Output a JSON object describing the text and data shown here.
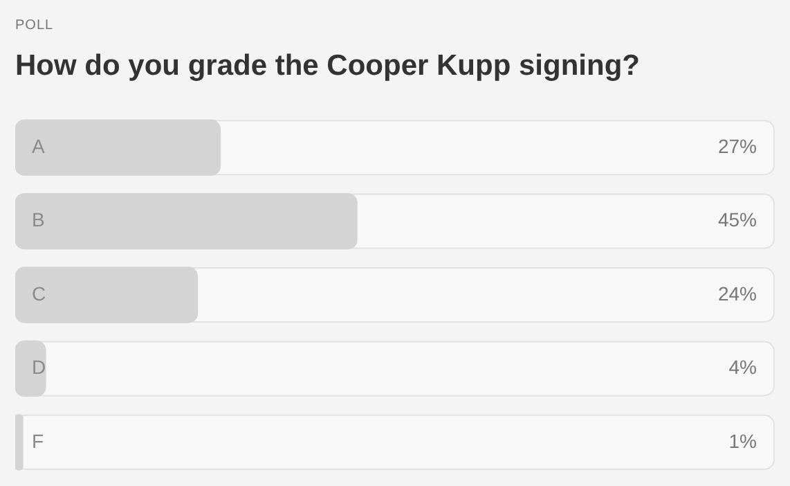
{
  "chart_data": {
    "type": "bar",
    "orientation": "horizontal",
    "subtitle": "POLL",
    "title": "How do you grade the Cooper Kupp signing?",
    "categories": [
      "A",
      "B",
      "C",
      "D",
      "F"
    ],
    "values": [
      27,
      45,
      24,
      4,
      1
    ],
    "value_labels": [
      "27%",
      "45%",
      "24%",
      "4%",
      "1%"
    ],
    "color": "#d4d4d4",
    "xlim": [
      0,
      100
    ],
    "tick_labels": false
  }
}
